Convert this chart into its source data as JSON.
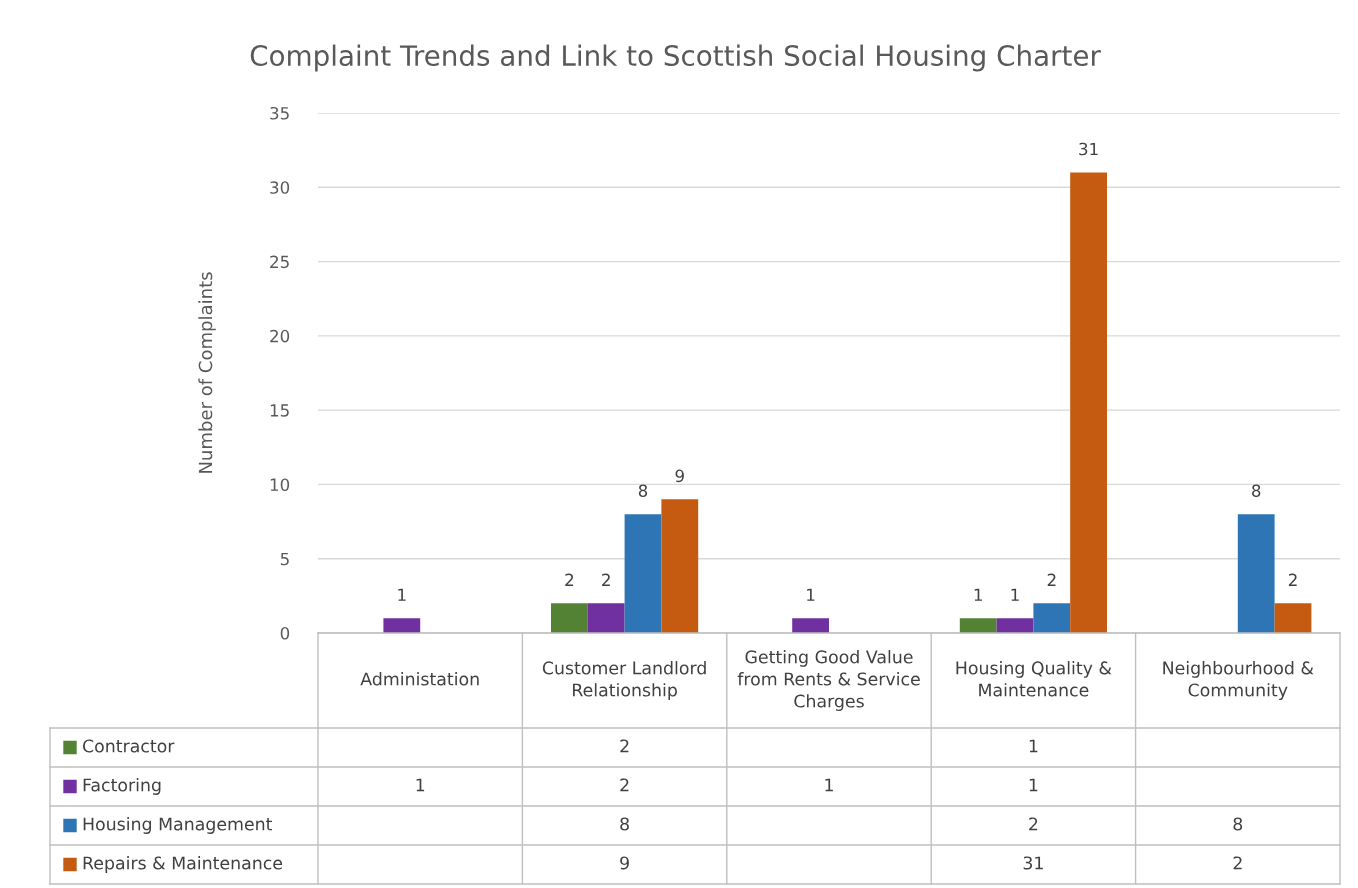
{
  "chart_data": {
    "type": "bar",
    "title": "Complaint Trends and Link to Scottish Social Housing Charter",
    "ylabel": "Number of Complaints",
    "categories": [
      "Administation",
      "Customer Landlord Relationship",
      "Getting Good Value from Rents & Service Charges",
      "Housing Quality & Maintenance",
      "Neighbourhood & Community"
    ],
    "series": [
      {
        "name": "Contractor",
        "color": "#548235",
        "values": [
          null,
          2,
          null,
          1,
          null
        ]
      },
      {
        "name": "Factoring",
        "color": "#7030a0",
        "values": [
          1,
          2,
          1,
          1,
          null
        ]
      },
      {
        "name": "Housing Management",
        "color": "#2e75b6",
        "values": [
          null,
          8,
          null,
          2,
          8
        ]
      },
      {
        "name": "Repairs & Maintenance",
        "color": "#c55a11",
        "values": [
          null,
          9,
          null,
          31,
          2
        ]
      }
    ],
    "ylim": [
      0,
      35
    ],
    "yticks": [
      0,
      5,
      10,
      15,
      20,
      25,
      30,
      35
    ],
    "grid": "y",
    "data_labels": true,
    "legend": "bottom",
    "annotations": [
      "2",
      "1",
      "1",
      "2",
      "1",
      "1",
      "8",
      "2",
      "8",
      "9",
      "31",
      "2"
    ]
  }
}
